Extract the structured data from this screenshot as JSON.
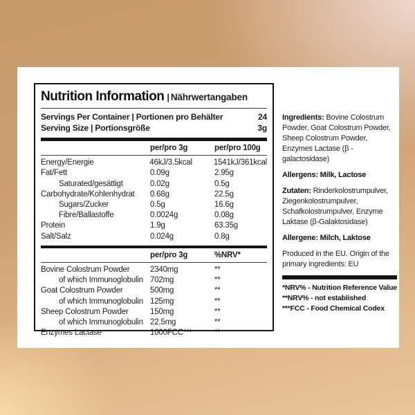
{
  "colors": {
    "ink": "#151515",
    "card": "#ffffff",
    "bg_tan": "#c6996a",
    "bg_sand": "#e9c79b",
    "bg_pink": "#f0dbd4"
  },
  "panel": {
    "title_en": "Nutrition Information",
    "title_sep": "|",
    "title_de": "Nährwertangaben",
    "servings": [
      {
        "label": "Servings Per Container | Portionen pro Behälter",
        "value": "24"
      },
      {
        "label": "Serving Size | Portionsgröße",
        "value": "3g"
      }
    ],
    "table1": {
      "col1": "per/pro 3g",
      "col2": "per/pro 100g",
      "rows": [
        {
          "label": "Energy/Energie",
          "v1": "46kJ/3.5kcal",
          "v2": "1541kJ/361kcal"
        },
        {
          "label": "Fat/Fett",
          "v1": "0.09g",
          "v2": "2.95g"
        },
        {
          "label": "Saturated/gesättigt",
          "v1": "0.02g",
          "v2": "0.5g"
        },
        {
          "label": "Carbohydrate/Kohlenhydrat",
          "v1": "0.68g",
          "v2": "22.5g"
        },
        {
          "label": "Sugars/Zucker",
          "v1": "0.5g",
          "v2": "16.6g"
        },
        {
          "label": "Fibre/Ballastoffe",
          "v1": "0.0024g",
          "v2": "0.08g"
        },
        {
          "label": "Protein",
          "v1": "1.9g",
          "v2": "63.35g"
        },
        {
          "label": "Salt/Salz",
          "v1": "0.024g",
          "v2": "0.8g"
        }
      ]
    },
    "table2": {
      "col1": "per/pro 3g",
      "col2": "%NRV*",
      "rows": [
        {
          "label": "Bovine Colostrum Powder",
          "v1": "2340mg",
          "v2": "**"
        },
        {
          "label": "of which Immunoglobulin",
          "v1": "702mg",
          "v2": "**"
        },
        {
          "label": "Goat Colostrum Powder",
          "v1": "500mg",
          "v2": "**"
        },
        {
          "label": "of which Immunoglobulin",
          "v1": "125mg",
          "v2": "**"
        },
        {
          "label": "Sheep Colostrum Powder",
          "v1": "150mg",
          "v2": "**"
        },
        {
          "label": "of which Immunoglobulin",
          "v1": "22,5mg",
          "v2": "**"
        },
        {
          "label": "Enzymes Lactase",
          "v1": "1000FCC***",
          "v2": "**"
        }
      ]
    }
  },
  "side": {
    "ingredients_label": "Ingredients:",
    "ingredients_text": " Bovine Colostrum Powder,  Goat Colostrum Powder, Sheep Colostrum Powder, Enzymes Lactase (β - galactosidase)",
    "allergens_label": "Allergens:",
    "allergens_text": " Milk, Lactose",
    "zutaten_label": "Zutaten:",
    "zutaten_text": " Rinderkolostrumpulver, Ziegenkolostrumpulver, Schafkolostrumpulver, Enzyme Laktase (β-Galaktosidase)",
    "allergene_label": "Allergene:",
    "allergene_text": " Milch, Laktose",
    "origin_text": "Produced in the EU. Origin of the primary ingredients: EU",
    "footnotes": [
      "*NRV% - Nutrition Reference Value",
      "**NRV% - not established",
      "***FCC - Food Chemical Codex"
    ]
  }
}
